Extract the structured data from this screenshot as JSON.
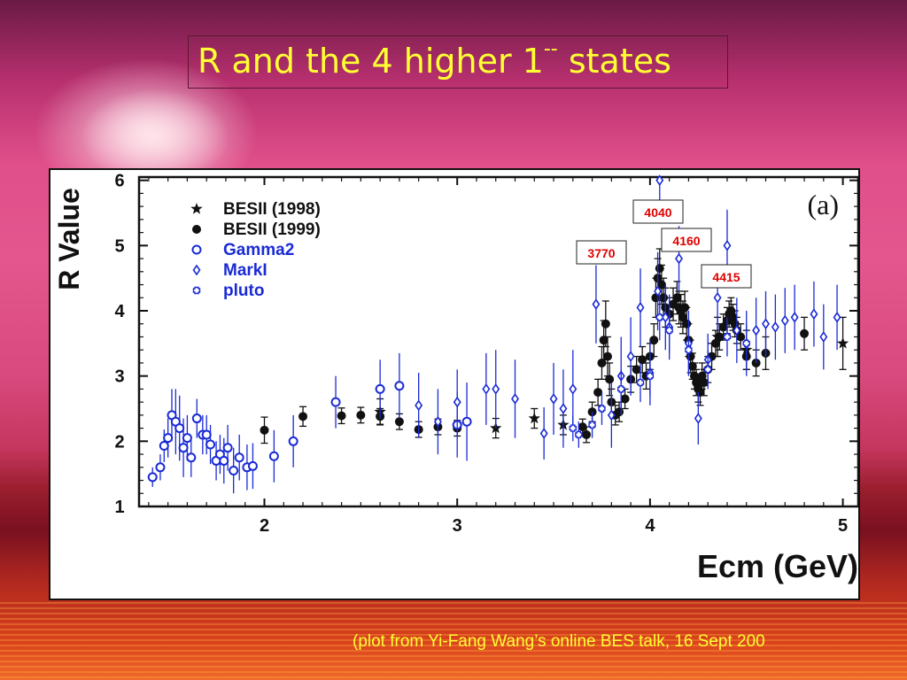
{
  "slide": {
    "title": "R and the 4 higher 1",
    "title_sup": "--",
    "title_end": " states",
    "caption": "(plot from Yi-Fang Wang’s online BES talk, 16 Sept 200",
    "title_color": "#ffff33"
  },
  "chart_data": {
    "type": "scatter",
    "panel_label": "(a)",
    "xlabel": "Ecm (GeV)",
    "ylabel": "R Value",
    "xlim": [
      1.35,
      5.08
    ],
    "ylim": [
      1,
      6.05
    ],
    "x_ticks": [
      2,
      3,
      4,
      5
    ],
    "y_ticks": [
      1,
      2,
      3,
      4,
      5,
      6
    ],
    "grid": false,
    "legend_position": "top-left",
    "annotations": [
      {
        "label": "3770",
        "x": 3.773,
        "color": "#e00000"
      },
      {
        "label": "4040",
        "x": 4.04,
        "color": "#e00000"
      },
      {
        "label": "4160",
        "x": 4.16,
        "color": "#e00000"
      },
      {
        "label": "4415",
        "x": 4.415,
        "color": "#e00000"
      }
    ],
    "series": [
      {
        "name": "BESII (1998)",
        "marker": "star",
        "color": "#111111",
        "points": [
          [
            2.6,
            2.45,
            0.2
          ],
          [
            3.2,
            2.2,
            0.15
          ],
          [
            3.4,
            2.35,
            0.15
          ],
          [
            3.55,
            2.25,
            0.15
          ],
          [
            4.35,
            3.6,
            0.3
          ],
          [
            4.5,
            3.4,
            0.3
          ],
          [
            5.0,
            3.5,
            0.4
          ]
        ]
      },
      {
        "name": "BESII (1999)",
        "marker": "filled-circle",
        "color": "#111111",
        "points": [
          [
            2.0,
            2.17,
            0.2
          ],
          [
            2.2,
            2.38,
            0.15
          ],
          [
            2.4,
            2.39,
            0.12
          ],
          [
            2.5,
            2.4,
            0.12
          ],
          [
            2.6,
            2.38,
            0.12
          ],
          [
            2.7,
            2.3,
            0.12
          ],
          [
            2.8,
            2.18,
            0.12
          ],
          [
            2.9,
            2.22,
            0.12
          ],
          [
            3.0,
            2.2,
            0.12
          ],
          [
            3.65,
            2.22,
            0.12
          ],
          [
            3.67,
            2.1,
            0.12
          ],
          [
            3.7,
            2.45,
            0.15
          ],
          [
            3.73,
            2.75,
            0.2
          ],
          [
            3.75,
            3.2,
            0.25
          ],
          [
            3.76,
            3.55,
            0.3
          ],
          [
            3.77,
            3.8,
            0.35
          ],
          [
            3.78,
            3.3,
            0.3
          ],
          [
            3.79,
            2.95,
            0.25
          ],
          [
            3.8,
            2.6,
            0.2
          ],
          [
            3.82,
            2.4,
            0.15
          ],
          [
            3.84,
            2.45,
            0.15
          ],
          [
            3.87,
            2.65,
            0.15
          ],
          [
            3.9,
            2.95,
            0.2
          ],
          [
            3.93,
            3.1,
            0.2
          ],
          [
            3.96,
            3.25,
            0.2
          ],
          [
            3.98,
            3.0,
            0.2
          ],
          [
            4.0,
            3.3,
            0.2
          ],
          [
            4.02,
            3.55,
            0.25
          ],
          [
            4.03,
            4.2,
            0.3
          ],
          [
            4.04,
            4.5,
            0.3
          ],
          [
            4.05,
            4.65,
            0.3
          ],
          [
            4.06,
            4.4,
            0.3
          ],
          [
            4.07,
            4.2,
            0.3
          ],
          [
            4.08,
            4.05,
            0.3
          ],
          [
            4.1,
            3.95,
            0.25
          ],
          [
            4.12,
            4.1,
            0.25
          ],
          [
            4.14,
            4.2,
            0.25
          ],
          [
            4.15,
            4.05,
            0.25
          ],
          [
            4.16,
            4.0,
            0.25
          ],
          [
            4.17,
            3.9,
            0.25
          ],
          [
            4.18,
            4.05,
            0.25
          ],
          [
            4.19,
            3.8,
            0.25
          ],
          [
            4.2,
            3.55,
            0.25
          ],
          [
            4.21,
            3.3,
            0.25
          ],
          [
            4.22,
            3.15,
            0.2
          ],
          [
            4.23,
            3.0,
            0.2
          ],
          [
            4.24,
            2.9,
            0.2
          ],
          [
            4.25,
            2.8,
            0.2
          ],
          [
            4.26,
            2.75,
            0.2
          ],
          [
            4.27,
            3.0,
            0.2
          ],
          [
            4.28,
            2.9,
            0.2
          ],
          [
            4.3,
            3.1,
            0.2
          ],
          [
            4.32,
            3.3,
            0.2
          ],
          [
            4.34,
            3.5,
            0.2
          ],
          [
            4.36,
            3.6,
            0.2
          ],
          [
            4.38,
            3.75,
            0.2
          ],
          [
            4.4,
            3.85,
            0.2
          ],
          [
            4.41,
            3.95,
            0.2
          ],
          [
            4.42,
            4.0,
            0.2
          ],
          [
            4.43,
            3.9,
            0.2
          ],
          [
            4.44,
            3.8,
            0.2
          ],
          [
            4.45,
            3.7,
            0.2
          ],
          [
            4.47,
            3.6,
            0.2
          ],
          [
            4.5,
            3.3,
            0.2
          ],
          [
            4.55,
            3.2,
            0.2
          ],
          [
            4.6,
            3.35,
            0.25
          ],
          [
            4.8,
            3.65,
            0.25
          ]
        ]
      },
      {
        "name": "Gamma2",
        "marker": "open-circle",
        "color": "#1a2bd6",
        "points": [
          [
            1.42,
            1.45,
            0.15
          ],
          [
            1.46,
            1.6,
            0.2
          ],
          [
            1.48,
            1.93,
            0.25
          ],
          [
            1.5,
            2.05,
            0.3
          ],
          [
            1.52,
            2.4,
            0.4
          ],
          [
            1.54,
            2.3,
            0.5
          ],
          [
            1.56,
            2.2,
            0.5
          ],
          [
            1.58,
            1.9,
            0.45
          ],
          [
            1.6,
            2.05,
            0.35
          ],
          [
            1.62,
            1.75,
            0.3
          ],
          [
            1.65,
            2.35,
            0.3
          ],
          [
            1.68,
            2.1,
            0.3
          ],
          [
            1.7,
            2.1,
            0.3
          ],
          [
            1.72,
            1.95,
            0.3
          ],
          [
            1.75,
            1.7,
            0.3
          ],
          [
            1.77,
            1.8,
            0.3
          ],
          [
            1.79,
            1.7,
            0.35
          ],
          [
            1.81,
            1.9,
            0.35
          ],
          [
            1.84,
            1.55,
            0.35
          ],
          [
            1.87,
            1.75,
            0.35
          ],
          [
            1.91,
            1.6,
            0.35
          ],
          [
            1.94,
            1.62,
            0.35
          ],
          [
            2.05,
            1.77,
            0.4
          ],
          [
            2.15,
            2.0,
            0.4
          ],
          [
            2.37,
            2.6,
            0.4
          ],
          [
            2.6,
            2.8,
            0.45
          ],
          [
            2.7,
            2.85,
            0.5
          ],
          [
            3.0,
            2.25,
            0.5
          ],
          [
            3.05,
            2.3,
            0.6
          ]
        ]
      },
      {
        "name": "MarkI",
        "marker": "open-diamond",
        "color": "#1a2bd6",
        "points": [
          [
            2.8,
            2.55,
            0.5
          ],
          [
            2.9,
            2.3,
            0.5
          ],
          [
            3.0,
            2.6,
            0.5
          ],
          [
            3.15,
            2.8,
            0.55
          ],
          [
            3.2,
            2.8,
            0.6
          ],
          [
            3.3,
            2.65,
            0.6
          ],
          [
            3.45,
            2.12,
            0.4
          ],
          [
            3.5,
            2.65,
            0.55
          ],
          [
            3.55,
            2.5,
            0.6
          ],
          [
            3.6,
            2.8,
            0.6
          ],
          [
            3.72,
            4.1,
            0.6
          ],
          [
            3.8,
            2.4,
            0.5
          ],
          [
            3.85,
            3.0,
            0.6
          ],
          [
            3.9,
            3.3,
            0.6
          ],
          [
            3.95,
            4.05,
            0.6
          ],
          [
            4.0,
            3.05,
            0.5
          ],
          [
            4.04,
            4.3,
            0.6
          ],
          [
            4.05,
            6.0,
            0.6
          ],
          [
            4.08,
            3.9,
            0.5
          ],
          [
            4.1,
            3.75,
            0.5
          ],
          [
            4.15,
            4.8,
            0.5
          ],
          [
            4.2,
            3.5,
            0.5
          ],
          [
            4.25,
            2.35,
            0.4
          ],
          [
            4.3,
            3.25,
            0.4
          ],
          [
            4.35,
            4.2,
            0.5
          ],
          [
            4.4,
            5.0,
            0.55
          ],
          [
            4.45,
            3.7,
            0.5
          ],
          [
            4.5,
            3.5,
            0.5
          ],
          [
            4.55,
            3.7,
            0.5
          ],
          [
            4.6,
            3.8,
            0.5
          ],
          [
            4.65,
            3.75,
            0.5
          ],
          [
            4.7,
            3.85,
            0.5
          ],
          [
            4.75,
            3.9,
            0.5
          ],
          [
            4.85,
            3.95,
            0.5
          ],
          [
            4.9,
            3.6,
            0.5
          ],
          [
            4.97,
            3.9,
            0.5
          ]
        ]
      },
      {
        "name": "pluto",
        "marker": "open-cross",
        "color": "#1a2bd6",
        "points": [
          [
            3.6,
            2.2,
            0.2
          ],
          [
            3.63,
            2.1,
            0.2
          ],
          [
            3.7,
            2.25,
            0.2
          ],
          [
            3.75,
            2.5,
            0.25
          ],
          [
            3.85,
            2.8,
            0.3
          ],
          [
            3.95,
            2.9,
            0.3
          ],
          [
            4.0,
            3.0,
            0.3
          ],
          [
            4.05,
            3.9,
            0.35
          ],
          [
            4.1,
            3.7,
            0.35
          ],
          [
            4.2,
            3.4,
            0.35
          ],
          [
            4.3,
            3.1,
            0.3
          ],
          [
            4.4,
            3.6,
            0.3
          ],
          [
            4.5,
            3.5,
            0.3
          ]
        ]
      }
    ]
  }
}
